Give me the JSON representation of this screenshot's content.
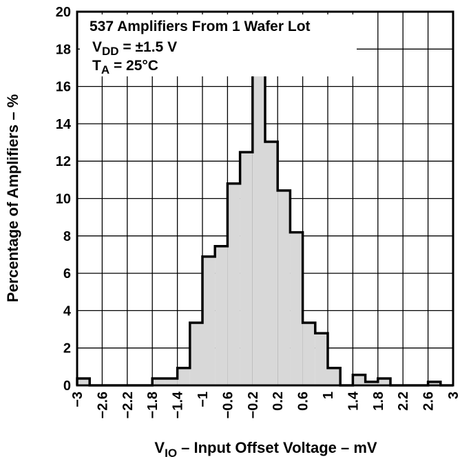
{
  "chart_data": {
    "type": "bar",
    "title": "",
    "x_axis": {
      "label_main": "V",
      "label_sub": "IO",
      "label_rest": " – Input Offset Voltage – mV",
      "range": [
        -3,
        3
      ],
      "tick_labels": [
        "−3",
        "−2.6",
        "−2.2",
        "−1.8",
        "−1.4",
        "−1",
        "−0.6",
        "−0.2",
        "0.2",
        "0.6",
        "1",
        "1.4",
        "1.8",
        "2.2",
        "2.6",
        "3"
      ]
    },
    "y_axis": {
      "label": "Percentage of Amplifiers – %",
      "range": [
        0,
        20
      ],
      "tick_labels": [
        "0",
        "2",
        "4",
        "6",
        "8",
        "10",
        "12",
        "14",
        "16",
        "18",
        "20"
      ]
    },
    "grid": true,
    "annotations": [
      {
        "text": "537 Amplifiers From 1 Wafer Lot"
      },
      {
        "main": "V",
        "sub": "DD",
        "rest": " = ±1.5 V"
      },
      {
        "main": "T",
        "sub": "A",
        "rest": " = 25°C"
      }
    ],
    "bin_width": 0.2,
    "bin_starts": [
      -3.0,
      -2.8,
      -2.6,
      -2.4,
      -2.2,
      -2.0,
      -1.8,
      -1.6,
      -1.4,
      -1.2,
      -1.0,
      -0.8,
      -0.6,
      -0.4,
      -0.2,
      0.0,
      0.2,
      0.4,
      0.6,
      0.8,
      1.0,
      1.2,
      1.4,
      1.6,
      1.8,
      2.0,
      2.2,
      2.4,
      2.6,
      2.8
    ],
    "values": [
      0.37,
      0,
      0,
      0,
      0,
      0,
      0.37,
      0.37,
      0.93,
      3.35,
      6.89,
      7.45,
      10.8,
      12.48,
      18.06,
      13.04,
      10.43,
      8.19,
      3.35,
      2.79,
      0.93,
      0,
      0.56,
      0.19,
      0.37,
      0,
      0,
      0,
      0.19,
      0
    ],
    "fill_color": "#d8d8d8",
    "outline_color": "#000000"
  }
}
